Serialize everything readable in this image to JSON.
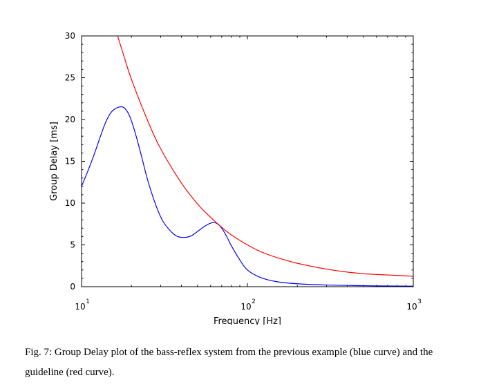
{
  "chart_data": {
    "type": "line",
    "xlabel": "Frequency [Hz]",
    "ylabel": "Group Delay [ms]",
    "xscale": "log",
    "xlim": [
      10,
      1000
    ],
    "ylim": [
      0,
      30
    ],
    "x_ticks": [
      {
        "value": 10,
        "base": "10",
        "exp": "1"
      },
      {
        "value": 100,
        "base": "10",
        "exp": "2"
      },
      {
        "value": 1000,
        "base": "10",
        "exp": "3"
      }
    ],
    "y_ticks": [
      0,
      5,
      10,
      15,
      20,
      25,
      30
    ],
    "series": [
      {
        "color": "#0000ff",
        "x": [
          10,
          11,
          12,
          13,
          14,
          15,
          16,
          17,
          17.7,
          18.5,
          19.5,
          21,
          23,
          25,
          28,
          31,
          35,
          38,
          42,
          46,
          50,
          55,
          60,
          65,
          70,
          75,
          80,
          90,
          100,
          120,
          150,
          200,
          300,
          500,
          700,
          1000
        ],
        "y": [
          12.0,
          14.0,
          16.0,
          18.0,
          19.7,
          20.8,
          21.3,
          21.5,
          21.5,
          21.2,
          20.4,
          18.5,
          15.6,
          12.8,
          9.8,
          7.8,
          6.5,
          6.0,
          5.9,
          6.1,
          6.6,
          7.2,
          7.6,
          7.6,
          7.0,
          6.0,
          4.9,
          3.2,
          2.0,
          1.1,
          0.6,
          0.35,
          0.2,
          0.12,
          0.08,
          0.06
        ]
      },
      {
        "color": "#ff0000",
        "x": [
          16.5,
          18,
          20,
          25,
          30,
          40,
          50,
          60,
          70,
          80,
          100,
          120,
          150,
          200,
          300,
          400,
          500,
          700,
          1000
        ],
        "y": [
          30.0,
          27.6,
          24.8,
          19.9,
          16.5,
          12.4,
          9.9,
          8.3,
          7.1,
          6.2,
          5.0,
          4.2,
          3.5,
          2.8,
          2.1,
          1.75,
          1.55,
          1.4,
          1.25
        ]
      }
    ]
  },
  "caption": {
    "text": "Fig. 7: Group Delay plot of the bass-reflex system from the previous example (blue curve) and the guideline (red curve)."
  }
}
